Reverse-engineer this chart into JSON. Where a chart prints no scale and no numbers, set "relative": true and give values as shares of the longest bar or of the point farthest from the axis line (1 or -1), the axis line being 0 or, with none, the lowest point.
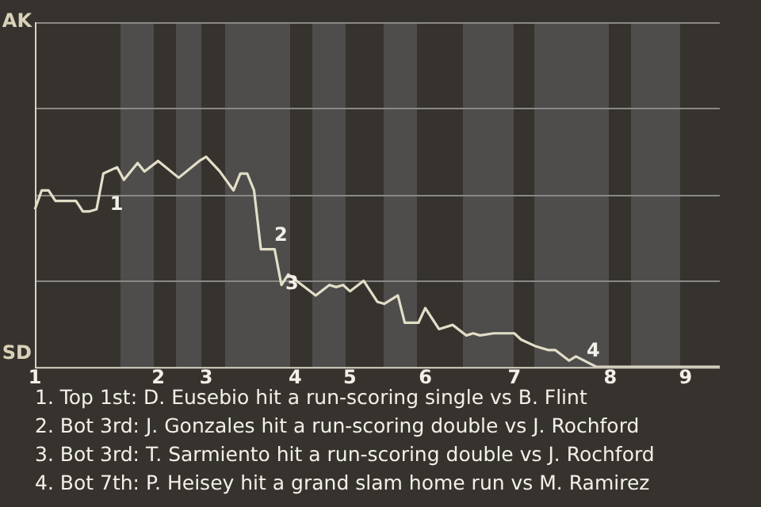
{
  "chart_data": {
    "type": "line",
    "relative": true,
    "categories": [
      "1",
      null,
      null,
      null,
      null,
      null,
      null,
      null,
      null,
      null,
      null,
      null,
      null,
      null,
      null,
      null,
      null,
      null,
      "2",
      null,
      null,
      null,
      null,
      null,
      null,
      "3",
      null,
      null,
      null,
      null,
      null,
      null,
      null,
      null,
      null,
      null,
      null,
      null,
      "4",
      null,
      null,
      null,
      null,
      null,
      null,
      null,
      "5",
      null,
      null,
      null,
      null,
      null,
      null,
      null,
      null,
      null,
      null,
      "6",
      null,
      null,
      null,
      null,
      null,
      null,
      null,
      null,
      null,
      null,
      null,
      null,
      "7",
      null,
      null,
      null,
      null,
      null,
      null,
      null,
      null,
      null,
      null,
      null,
      null,
      null,
      "8",
      null,
      null,
      null,
      null,
      null,
      null,
      null,
      null,
      null,
      null,
      "9",
      null,
      null,
      null,
      null,
      null
    ],
    "series": [
      {
        "color": "#e2dec8",
        "values": [
          0.75,
          0.84,
          0.84,
          0.79,
          null,
          null,
          0.79,
          0.74,
          0.74,
          0.75,
          0.92,
          null,
          0.95,
          0.89,
          null,
          0.97,
          0.93,
          null,
          0.98,
          null,
          null,
          0.9,
          null,
          null,
          0.98,
          1,
          null,
          0.93,
          null,
          0.84,
          0.92,
          0.92,
          0.84,
          0.56,
          null,
          0.56,
          0.39,
          0.44,
          null,
          0.39,
          null,
          0.34,
          null,
          0.39,
          0.38,
          0.39,
          0.36,
          null,
          0.41,
          0.36,
          0.31,
          0.3,
          null,
          0.34,
          0.21,
          null,
          0.21,
          0.28,
          null,
          0.18,
          null,
          0.2,
          null,
          0.15,
          0.16,
          0.15,
          null,
          0.16,
          null,
          null,
          0.16,
          0.13,
          null,
          0.1,
          null,
          0.08,
          0.08,
          null,
          0.03,
          0.05,
          null,
          null,
          0,
          null,
          null,
          null,
          null,
          null,
          null,
          null,
          null,
          null,
          null,
          null,
          null,
          null,
          null,
          null,
          null,
          null,
          0
        ]
      }
    ],
    "marker": "none",
    "ref_lines": [
      {
        "axis": "y",
        "value": 0.41,
        "color": "#8a8885"
      },
      {
        "axis": "y",
        "value": 0.82,
        "color": "#8a8885"
      },
      {
        "axis": "y",
        "value": 1.23,
        "color": "#8a8885"
      },
      {
        "axis": "y",
        "value": 1.64,
        "color": "#8a8885"
      }
    ],
    "annotations": [
      "AK",
      "SD",
      "1",
      "2",
      "3",
      "4",
      "1. Top 1st: D. Eusebio hit a run-scoring single vs B. Flint",
      "2. Bot 3rd: J. Gonzales hit a run-scoring double vs J. Rochford",
      "3. Bot 3rd: T. Sarmiento hit a run-scoring double vs J. Rochford",
      "4. Bot 7th: P. Heisey hit a grand slam home run vs M. Ramirez"
    ]
  }
}
